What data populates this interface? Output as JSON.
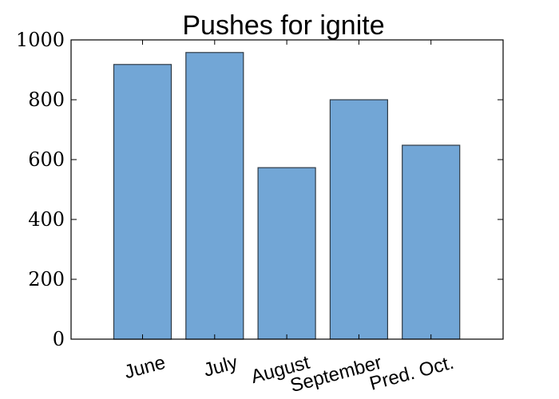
{
  "chart_data": {
    "type": "bar",
    "title": "Pushes for ignite",
    "xlabel": "",
    "ylabel": "",
    "categories": [
      "June",
      "July",
      "August",
      "September",
      "Pred. Oct."
    ],
    "values": [
      918,
      958,
      573,
      800,
      648
    ],
    "ylim": [
      0,
      1000
    ],
    "yticks": [
      0,
      200,
      400,
      600,
      800,
      1000
    ],
    "ytick_labels": [
      "0",
      "200",
      "400",
      "600",
      "800",
      "1000"
    ],
    "grid": false,
    "legend": "none",
    "bar_color": "#72a6d6",
    "edge_color": "#2f3a44"
  }
}
